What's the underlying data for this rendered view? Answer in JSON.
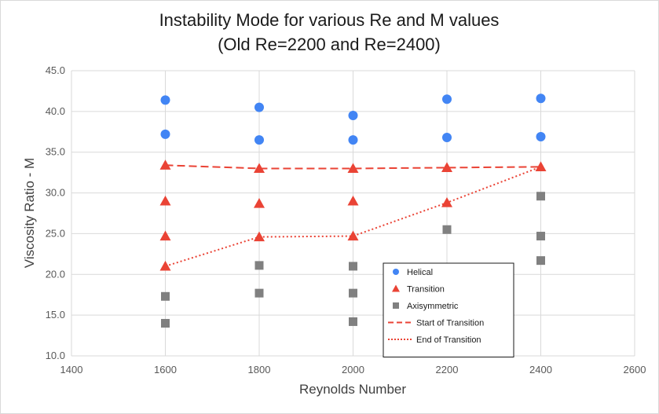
{
  "chart_data": {
    "type": "scatter",
    "title": "Instability Mode for various Re and M values",
    "subtitle": "(Old Re=2200 and Re=2400)",
    "xlabel": "Reynolds Number",
    "ylabel": "Viscosity Ratio - M",
    "xlim": [
      1400,
      2600
    ],
    "ylim": [
      10,
      45
    ],
    "xticks": [
      1400,
      1600,
      1800,
      2000,
      2200,
      2400,
      2600
    ],
    "yticks": [
      10.0,
      15.0,
      20.0,
      25.0,
      30.0,
      35.0,
      40.0,
      45.0
    ],
    "xtick_labels": [
      "1400",
      "1600",
      "1800",
      "2000",
      "2200",
      "2400",
      "2600"
    ],
    "ytick_labels": [
      "10.0",
      "15.0",
      "20.0",
      "25.0",
      "30.0",
      "35.0",
      "40.0",
      "45.0"
    ],
    "grid": true,
    "legend_position": "bottom-right",
    "series": [
      {
        "name": "Helical",
        "kind": "marker",
        "marker": "circle",
        "color": "#4285f4",
        "points": [
          [
            1600,
            41.4
          ],
          [
            1600,
            37.2
          ],
          [
            1800,
            40.5
          ],
          [
            1800,
            36.5
          ],
          [
            2000,
            39.5
          ],
          [
            2000,
            36.5
          ],
          [
            2200,
            41.5
          ],
          [
            2200,
            36.8
          ],
          [
            2400,
            41.6
          ],
          [
            2400,
            36.9
          ]
        ]
      },
      {
        "name": "Transition",
        "kind": "marker",
        "marker": "triangle",
        "color": "#ea4335",
        "points": [
          [
            1600,
            33.4
          ],
          [
            1600,
            29.0
          ],
          [
            1600,
            24.7
          ],
          [
            1600,
            21.0
          ],
          [
            1800,
            33.0
          ],
          [
            1800,
            28.7
          ],
          [
            1800,
            24.6
          ],
          [
            2000,
            33.0
          ],
          [
            2000,
            29.0
          ],
          [
            2000,
            24.7
          ],
          [
            2200,
            33.1
          ],
          [
            2200,
            28.8
          ],
          [
            2400,
            33.2
          ]
        ]
      },
      {
        "name": "Axisymmetric",
        "kind": "marker",
        "marker": "square",
        "color": "#808080",
        "points": [
          [
            1600,
            17.3
          ],
          [
            1600,
            14.0
          ],
          [
            1800,
            21.1
          ],
          [
            1800,
            17.7
          ],
          [
            2000,
            21.0
          ],
          [
            2000,
            17.7
          ],
          [
            2000,
            14.2
          ],
          [
            2200,
            25.5
          ],
          [
            2400,
            29.6
          ],
          [
            2400,
            24.7
          ],
          [
            2400,
            21.7
          ]
        ]
      },
      {
        "name": "Start of Transition",
        "kind": "line",
        "dash": "dashed",
        "color": "#ea4335",
        "points": [
          [
            1600,
            33.4
          ],
          [
            1800,
            33.0
          ],
          [
            2000,
            33.0
          ],
          [
            2200,
            33.1
          ],
          [
            2400,
            33.2
          ]
        ]
      },
      {
        "name": "End of Transition",
        "kind": "line",
        "dash": "dotted",
        "color": "#ea4335",
        "points": [
          [
            1600,
            21.0
          ],
          [
            1800,
            24.6
          ],
          [
            2000,
            24.7
          ],
          [
            2200,
            28.8
          ],
          [
            2400,
            33.2
          ]
        ]
      }
    ]
  }
}
